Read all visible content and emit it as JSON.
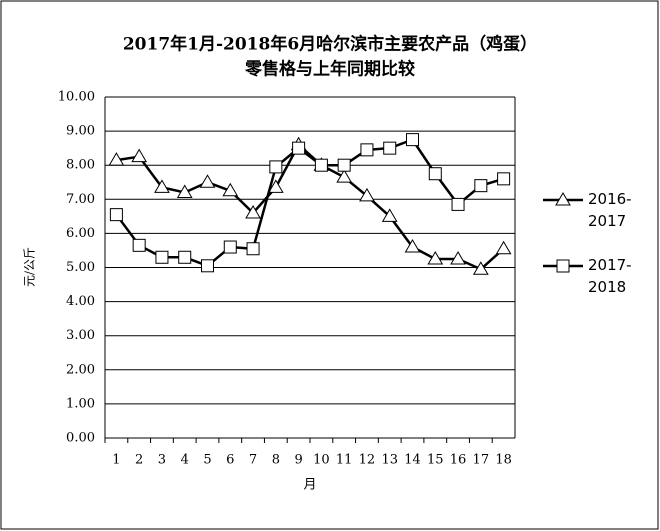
{
  "chart_data": {
    "type": "line",
    "title_lines": [
      "2017年1月-2018年6月哈尔滨市主要农产品（鸡蛋）",
      "零售格与上年同期比较"
    ],
    "y_label": "元/公斤",
    "x_label": "月",
    "categories": [
      "1",
      "2",
      "3",
      "4",
      "5",
      "6",
      "7",
      "8",
      "9",
      "10",
      "11",
      "12",
      "13",
      "14",
      "15",
      "16",
      "17",
      "18"
    ],
    "series": [
      {
        "name": "2016-2017",
        "marker": "triangle",
        "color": "#000000",
        "values": [
          8.15,
          8.25,
          7.35,
          7.2,
          7.5,
          7.25,
          6.6,
          7.35,
          8.6,
          8.0,
          7.65,
          7.1,
          6.5,
          5.6,
          5.25,
          5.25,
          4.95,
          5.55
        ]
      },
      {
        "name": "2017-2018",
        "marker": "square",
        "color": "#000000",
        "values": [
          6.55,
          5.65,
          5.3,
          5.3,
          5.05,
          5.6,
          5.55,
          7.95,
          8.5,
          8.0,
          8.0,
          8.45,
          8.5,
          8.75,
          7.75,
          6.85,
          7.4,
          7.6
        ]
      }
    ],
    "ylim": [
      0,
      10
    ],
    "yticks": [
      {
        "value": 0,
        "label": "0.00"
      },
      {
        "value": 1,
        "label": "1.00"
      },
      {
        "value": 2,
        "label": "2.00"
      },
      {
        "value": 3,
        "label": "3.00"
      },
      {
        "value": 4,
        "label": "4.00"
      },
      {
        "value": 5,
        "label": "5.00"
      },
      {
        "value": 6,
        "label": "6.00"
      },
      {
        "value": 7,
        "label": "7.00"
      },
      {
        "value": 8,
        "label": "8.00"
      },
      {
        "value": 9,
        "label": "9.00"
      },
      {
        "value": 10,
        "label": "10.00"
      }
    ],
    "grid": true
  }
}
